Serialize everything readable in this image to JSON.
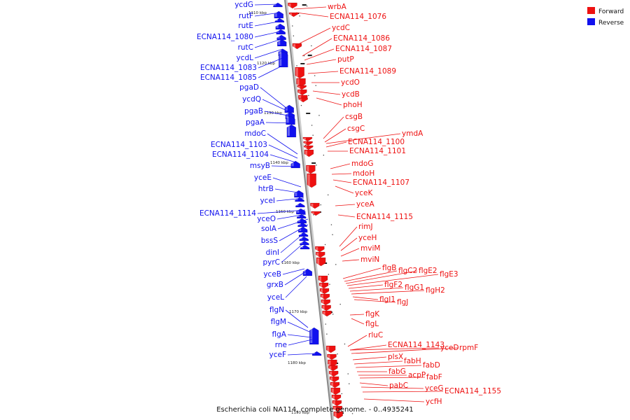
{
  "caption": "Escherichia coli NA114, complete genome. - 0..4935241",
  "legend": [
    {
      "label": "Forward",
      "color": "#ee1111"
    },
    {
      "label": "Reverse",
      "color": "#1111ee"
    }
  ],
  "colors": {
    "forward": "#ee1111",
    "reverse": "#1111ee",
    "backbone": "#888888"
  },
  "kbp_marks": [
    "1110 kbp",
    "1120 kbp",
    "1130 kbp",
    "1140 kbp",
    "1150 kbp",
    "1160 kbp",
    "1170 kbp",
    "1180 kbp",
    "1190 kbp"
  ],
  "reverse_genes": [
    "ycdG",
    "rutF",
    "rutE",
    "ECNA114_1080",
    "rutC",
    "ycdL",
    "ECNA114_1083",
    "ECNA114_1085",
    "pgaD",
    "ycdQ",
    "pgaB",
    "pgaA",
    "mdoC",
    "ECNA114_1103",
    "ECNA114_1104",
    "msyB",
    "yceE",
    "htrB",
    "yceI",
    "ECNA114_1114",
    "yceO",
    "solA",
    "bssS",
    "dinI",
    "pyrC",
    "yceB",
    "grxB",
    "yceL",
    "flgN",
    "flgM",
    "flgA",
    "rne",
    "yceF"
  ],
  "forward_genes": [
    "wrbA",
    "ECNA114_1076",
    "ycdC",
    "ECNA114_1086",
    "ECNA114_1087",
    "putP",
    "ECNA114_1089",
    "ycdO",
    "ycdB",
    "phoH",
    "csgB",
    "csgC",
    "ymdA",
    "ECNA114_1100",
    "ECNA114_1101",
    "mdoG",
    "mdoH",
    "ECNA114_1107",
    "yceK",
    "yceA",
    "ECNA114_1115",
    "rimJ",
    "yceH",
    "mviM",
    "mviN",
    "flgB",
    "flgC2",
    "flgE2",
    "flgE3",
    "flgF2",
    "flgG1",
    "flgH2",
    "flgI1",
    "flgJ",
    "flgK",
    "flgL",
    "rluC",
    "ECNA114_1143",
    "yceD",
    "rpmF",
    "plsX",
    "fabH",
    "fabD",
    "fabG",
    "acpP",
    "fabF",
    "pabC",
    "yceG",
    "ECNA114_1155",
    "ycfH"
  ]
}
